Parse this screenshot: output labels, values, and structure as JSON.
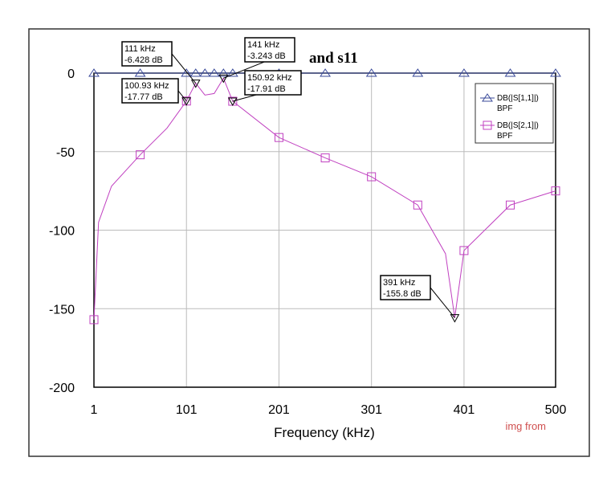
{
  "chart_data": {
    "type": "line",
    "title_fragment": "and s11",
    "xlabel": "Frequency (kHz)",
    "ylabel": "",
    "xlim": [
      1,
      500
    ],
    "ylim": [
      -200,
      0
    ],
    "xticks": [
      "1",
      "101",
      "201",
      "301",
      "401",
      "500"
    ],
    "yticks": [
      "0",
      "-50",
      "-100",
      "-150",
      "-200"
    ],
    "grid": true,
    "legend_position": "top-right",
    "series": [
      {
        "name": "DB(|S[1,1]|)",
        "sub": "BPF",
        "color": "#3a4a9a",
        "marker": "triangle",
        "x": [
          1,
          51,
          101,
          111,
          121,
          131,
          141,
          151,
          201,
          251,
          301,
          351,
          401,
          451,
          500
        ],
        "y": [
          0,
          0,
          0,
          0,
          0,
          0,
          0,
          0,
          0,
          0,
          0,
          0,
          0,
          0,
          0
        ]
      },
      {
        "name": "DB(|S[2,1]|)",
        "sub": "BPF",
        "color": "#c040c0",
        "marker": "square",
        "x": [
          1,
          6,
          20,
          51,
          80,
          101,
          111,
          121,
          131,
          141,
          151,
          201,
          251,
          301,
          351,
          381,
          391,
          401,
          451,
          500
        ],
        "y": [
          -157,
          -95,
          -72,
          -52,
          -35,
          -17.77,
          -6.428,
          -14,
          -13,
          -3.243,
          -17.91,
          -41,
          -54,
          -66,
          -84,
          -115,
          -155.8,
          -113,
          -84,
          -75
        ]
      }
    ],
    "markers": [
      {
        "label": [
          "111 kHz",
          "-6.428 dB"
        ],
        "x": 111,
        "y": -6.428
      },
      {
        "label": [
          "141 kHz",
          "-3.243 dB"
        ],
        "x": 141,
        "y": -3.243
      },
      {
        "label": [
          "100.93 kHz",
          "-17.77 dB"
        ],
        "x": 100.93,
        "y": -17.77
      },
      {
        "label": [
          "150.92 kHz",
          "-17.91 dB"
        ],
        "x": 150.92,
        "y": -17.91
      },
      {
        "label": [
          "391 kHz",
          "-155.8 dB"
        ],
        "x": 391,
        "y": -155.8
      }
    ]
  },
  "watermark": {
    "img_from": "img from"
  }
}
